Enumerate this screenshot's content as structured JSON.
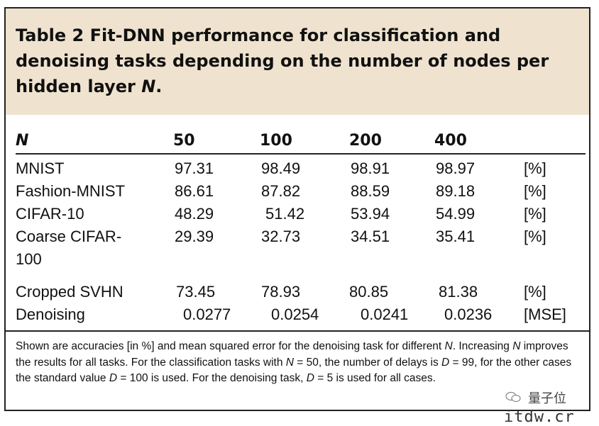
{
  "title": {
    "label": "Table 2",
    "text": "Fit-DNN performance for classification and denoising tasks depending on the number of nodes per hidden layer",
    "variable": "N",
    "end": "."
  },
  "table": {
    "header": [
      "N",
      "50",
      "100",
      "200",
      "400"
    ],
    "rows": [
      {
        "name": "MNIST",
        "v50": "97.31",
        "v100": "98.49",
        "v200": "98.91",
        "v400": "98.97",
        "unit": "[%]"
      },
      {
        "name": "Fashion-MNIST",
        "v50": "86.61",
        "v100": "87.82",
        "v200": "88.59",
        "v400": "89.18",
        "unit": "[%]"
      },
      {
        "name": "CIFAR-10",
        "v50": "48.29",
        "v100": "51.42",
        "v200": "53.94",
        "v400": "54.99",
        "unit": "[%]"
      },
      {
        "name": "Coarse CIFAR-",
        "name2": "100",
        "v50": "29.39",
        "v100": "32.73",
        "v200": "34.51",
        "v400": "35.41",
        "unit": "[%]"
      },
      {
        "name": "Cropped SVHN",
        "v50": "73.45",
        "v100": "78.93",
        "v200": "80.85",
        "v400": "81.38",
        "unit": "[%]"
      },
      {
        "name": "Denoising",
        "v50": "0.0277",
        "v100": "0.0254",
        "v200": "0.0241",
        "v400": "0.0236",
        "unit": "[MSE]"
      }
    ]
  },
  "note": {
    "p1": "Shown are accuracies [in %] and mean squared error for the denoising task for different ",
    "v1": "N",
    "p2": ". Increasing ",
    "v2": "N",
    "p3": " improves the results for all tasks. For the classification tasks with ",
    "v3": "N",
    "p4": " = 50, the number of delays is ",
    "v4": "D",
    "p5": " = 99, for the other cases the standard value ",
    "v5": "D",
    "p6": " = 100 is used. For the denoising task, ",
    "v6": "D",
    "p7": " = 5 is used for all cases."
  },
  "watermark": {
    "brand": "量子位",
    "site": "itdw.cr"
  }
}
